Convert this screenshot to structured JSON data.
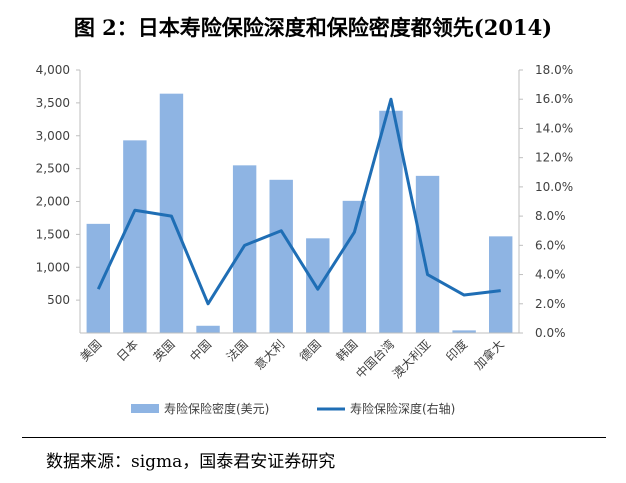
{
  "title": "图 2：日本寿险保险深度和保险密度都领先(2014)",
  "source": "数据来源：sigma，国泰君安证券研究",
  "chart_data": {
    "type": "bar",
    "categories": [
      "美国",
      "日本",
      "英国",
      "中国",
      "法国",
      "意大利",
      "德国",
      "韩国",
      "中国台湾",
      "澳大利亚",
      "印度",
      "加拿大"
    ],
    "series": [
      {
        "name": "寿险保险密度(美元)",
        "type": "bar",
        "axis": "left",
        "color": "#8eb4e3",
        "values": [
          1660,
          2930,
          3640,
          110,
          2550,
          2330,
          1440,
          2010,
          3380,
          2390,
          40,
          1470
        ]
      },
      {
        "name": "寿险保险深度(右轴)",
        "type": "line",
        "axis": "right",
        "color": "#1f6eb5",
        "values": [
          3.0,
          8.4,
          8.0,
          2.0,
          6.0,
          7.0,
          3.0,
          6.9,
          16.0,
          4.0,
          2.6,
          2.9
        ]
      }
    ],
    "y_left": {
      "min": 0,
      "max": 4000,
      "ticks": [
        "500",
        "1,000",
        "1,500",
        "2,000",
        "2,500",
        "3,000",
        "3,500",
        "4,000"
      ],
      "tick_values": [
        500,
        1000,
        1500,
        2000,
        2500,
        3000,
        3500,
        4000
      ]
    },
    "y_right": {
      "min": 0,
      "max": 18,
      "ticks": [
        "0.0%",
        "2.0%",
        "4.0%",
        "6.0%",
        "8.0%",
        "10.0%",
        "12.0%",
        "14.0%",
        "16.0%",
        "18.0%"
      ],
      "tick_values": [
        0,
        2,
        4,
        6,
        8,
        10,
        12,
        14,
        16,
        18
      ]
    },
    "legend_position": "bottom",
    "grid": false
  }
}
